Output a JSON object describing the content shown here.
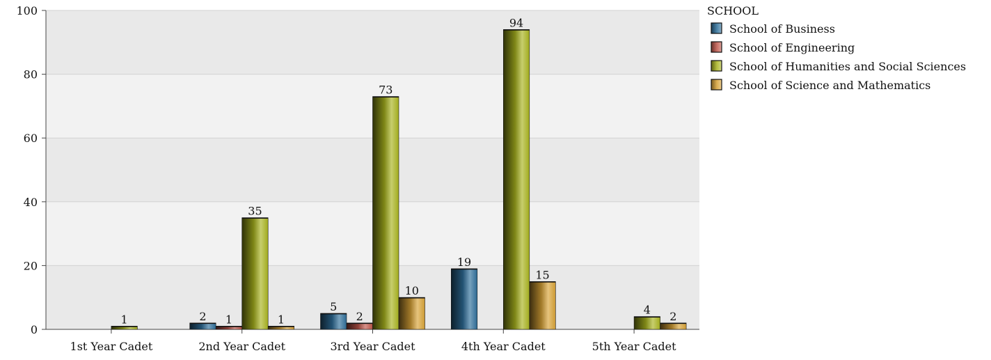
{
  "chart_data": {
    "type": "bar",
    "title": "",
    "xlabel": "",
    "ylabel": "",
    "categories": [
      "1st Year Cadet",
      "2nd Year Cadet",
      "3rd Year Cadet",
      "4th Year Cadet",
      "5th Year Cadet"
    ],
    "series": [
      {
        "name": "School of Business",
        "values": [
          null,
          2,
          5,
          19,
          null
        ],
        "color": "#2e6f9a"
      },
      {
        "name": "School of Engineering",
        "values": [
          null,
          1,
          2,
          null,
          null
        ],
        "color": "#c0564a"
      },
      {
        "name": "School of Humanities and Social Sciences",
        "values": [
          1,
          35,
          73,
          94,
          4
        ],
        "color": "#a9b41e"
      },
      {
        "name": "School of Science and Mathematics",
        "values": [
          null,
          1,
          10,
          15,
          2
        ],
        "color": "#d8a236"
      }
    ],
    "ylim": [
      0,
      100
    ],
    "yticks": [
      0,
      20,
      40,
      60,
      80,
      100
    ],
    "grid": true,
    "legend": {
      "title": "SCHOOL",
      "position": "top-right"
    }
  }
}
